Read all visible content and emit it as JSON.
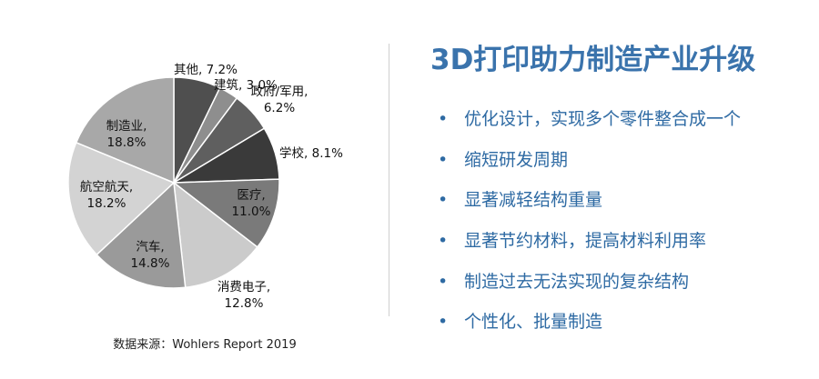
{
  "chart_data": {
    "type": "pie",
    "slices": [
      {
        "label": "其他",
        "value": 7.2,
        "value_text": "7.2%",
        "color": "#4f4f4f"
      },
      {
        "label": "建筑",
        "value": 3.0,
        "value_text": "3.0%",
        "color": "#8e8e8e"
      },
      {
        "label": "政府/军用",
        "value": 6.2,
        "value_text": "6.2%",
        "color": "#5f5f5f"
      },
      {
        "label": "学校",
        "value": 8.1,
        "value_text": "8.1%",
        "color": "#3a3a3a"
      },
      {
        "label": "医疗",
        "value": 11.0,
        "value_text": "11.0%",
        "color": "#7a7a7a"
      },
      {
        "label": "消费电子",
        "value": 12.8,
        "value_text": "12.8%",
        "color": "#cbcbcb"
      },
      {
        "label": "汽车",
        "value": 14.8,
        "value_text": "14.8%",
        "color": "#9a9a9a"
      },
      {
        "label": "航空航天",
        "value": 18.2,
        "value_text": "18.2%",
        "color": "#d3d3d3"
      },
      {
        "label": "制造业",
        "value": 18.8,
        "value_text": "18.8%",
        "color": "#a8a8a8"
      }
    ]
  },
  "source": "数据来源：Wohlers Report 2019",
  "title": "3D打印助力制造产业升级",
  "bullet_symbol": "•",
  "points": [
    "优化设计，实现多个零件整合成一个",
    "缩短研发周期",
    "显著减轻结构重量",
    "显著节约材料，提高材料利用率",
    "制造过去无法实现的复杂结构",
    "个性化、批量制造"
  ]
}
